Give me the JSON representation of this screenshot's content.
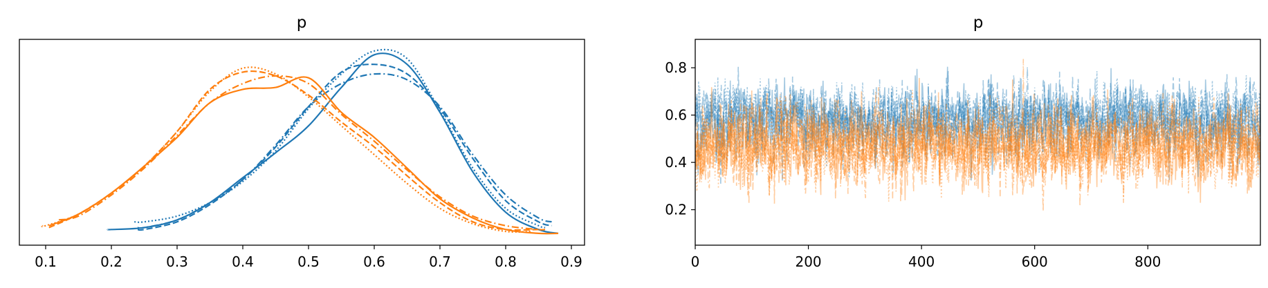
{
  "colors": {
    "blue": "#1f77b4",
    "orange": "#ff7f0e"
  },
  "chart_data": [
    {
      "type": "line",
      "title": "p",
      "xlabel": "",
      "ylabel": "",
      "xlim": [
        0.06,
        0.92
      ],
      "ylim": [
        0.0,
        1.0
      ],
      "xticks": [
        "0.1",
        "0.2",
        "0.3",
        "0.4",
        "0.5",
        "0.6",
        "0.7",
        "0.8",
        "0.9"
      ],
      "yticks": [],
      "grid": false,
      "x": [
        0.1,
        0.15,
        0.2,
        0.25,
        0.3,
        0.35,
        0.4,
        0.45,
        0.5,
        0.55,
        0.6,
        0.65,
        0.7,
        0.75,
        0.8,
        0.85,
        0.88
      ],
      "series": [
        {
          "color": "blue",
          "dash": "solid",
          "x0": 0.195,
          "x1": 0.88,
          "values": [
            null,
            null,
            0.06,
            0.07,
            0.11,
            0.2,
            0.33,
            0.46,
            0.6,
            0.8,
            0.97,
            0.92,
            0.67,
            0.36,
            0.15,
            0.06,
            0.04
          ]
        },
        {
          "color": "blue",
          "dash": "dashed",
          "x0": 0.24,
          "x1": 0.87,
          "values": [
            null,
            null,
            null,
            0.06,
            0.1,
            0.19,
            0.32,
            0.49,
            0.7,
            0.88,
            0.92,
            0.87,
            0.69,
            0.43,
            0.21,
            0.1,
            0.08
          ]
        },
        {
          "color": "blue",
          "dash": "dashdot",
          "x0": 0.24,
          "x1": 0.87,
          "values": [
            null,
            null,
            null,
            0.07,
            0.11,
            0.2,
            0.32,
            0.5,
            0.7,
            0.82,
            0.87,
            0.84,
            0.7,
            0.45,
            0.24,
            0.12,
            0.1
          ]
        },
        {
          "color": "blue",
          "dash": "dotted",
          "x0": 0.235,
          "x1": 0.86,
          "values": [
            null,
            null,
            null,
            0.1,
            0.13,
            0.2,
            0.31,
            0.47,
            0.69,
            0.87,
            0.99,
            0.95,
            0.68,
            0.38,
            0.17,
            0.08,
            0.07
          ]
        },
        {
          "color": "orange",
          "dash": "solid",
          "x0": 0.105,
          "x1": 0.88,
          "values": [
            0.08,
            0.14,
            0.25,
            0.39,
            0.54,
            0.72,
            0.79,
            0.8,
            0.85,
            0.67,
            0.54,
            0.38,
            0.22,
            0.12,
            0.06,
            0.04,
            0.04
          ]
        },
        {
          "color": "orange",
          "dash": "dashed",
          "x0": 0.105,
          "x1": 0.85,
          "values": [
            0.07,
            0.14,
            0.25,
            0.39,
            0.57,
            0.79,
            0.88,
            0.86,
            0.76,
            0.62,
            0.49,
            0.34,
            0.2,
            0.1,
            0.06,
            null,
            null
          ]
        },
        {
          "color": "orange",
          "dash": "dashdot",
          "x0": 0.12,
          "x1": 0.86,
          "values": [
            0.11,
            0.13,
            0.24,
            0.38,
            0.55,
            0.72,
            0.82,
            0.86,
            0.82,
            0.66,
            0.52,
            0.37,
            0.23,
            0.13,
            0.08,
            0.06,
            null
          ]
        },
        {
          "color": "orange",
          "dash": "dotted",
          "x0": 0.095,
          "x1": 0.84,
          "values": [
            0.08,
            0.14,
            0.25,
            0.39,
            0.57,
            0.78,
            0.9,
            0.87,
            0.75,
            0.6,
            0.45,
            0.3,
            0.17,
            0.09,
            0.05,
            null,
            null
          ]
        }
      ]
    },
    {
      "type": "line",
      "title": "p",
      "xlabel": "",
      "ylabel": "",
      "xlim": [
        0,
        999
      ],
      "ylim": [
        0.05,
        0.92
      ],
      "xticks": [
        "0",
        "200",
        "400",
        "600",
        "800"
      ],
      "yticks": [
        "0.2",
        "0.4",
        "0.6",
        "0.8"
      ],
      "grid": false,
      "draws": 1000,
      "alpha": 0.4,
      "series": [
        {
          "color": "blue",
          "dash": "solid",
          "mean": 0.58,
          "sd": 0.105
        },
        {
          "color": "blue",
          "dash": "dashed",
          "mean": 0.58,
          "sd": 0.105
        },
        {
          "color": "blue",
          "dash": "dashdot",
          "mean": 0.58,
          "sd": 0.105
        },
        {
          "color": "blue",
          "dash": "dotted",
          "mean": 0.58,
          "sd": 0.105
        },
        {
          "color": "orange",
          "dash": "solid",
          "mean": 0.47,
          "sd": 0.12
        },
        {
          "color": "orange",
          "dash": "dashed",
          "mean": 0.47,
          "sd": 0.12
        },
        {
          "color": "orange",
          "dash": "dashdot",
          "mean": 0.47,
          "sd": 0.12
        },
        {
          "color": "orange",
          "dash": "dotted",
          "mean": 0.47,
          "sd": 0.12
        }
      ]
    }
  ]
}
